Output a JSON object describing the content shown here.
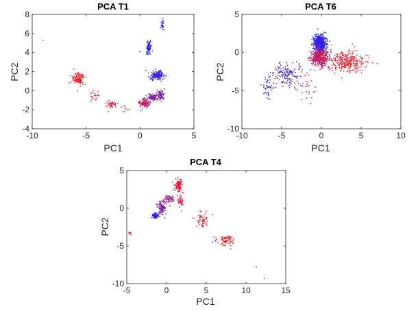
{
  "chart_data": [
    {
      "type": "scatter",
      "title": "PCA T1",
      "xlabel": "PC1",
      "ylabel": "PC2",
      "xlim": [
        -10,
        5
      ],
      "ylim": [
        -4,
        8
      ],
      "xticks": [
        -10,
        -5,
        0,
        5
      ],
      "yticks": [
        -4,
        -2,
        0,
        2,
        4,
        6,
        8
      ],
      "color_gradient": [
        "#ff2020",
        "#2020ff"
      ],
      "clusters": [
        {
          "x": -9.0,
          "y": 5.3,
          "count": 1,
          "t": 0.0
        },
        {
          "x": -5.7,
          "y": 1.3,
          "x2": -5.7,
          "y2": 1.3,
          "spread": [
            0.5,
            0.6
          ],
          "count": 120,
          "t": 0.0
        },
        {
          "x": -4.3,
          "y": -0.5,
          "spread": [
            0.6,
            0.5
          ],
          "count": 20,
          "t": 0.05
        },
        {
          "x": -2.6,
          "y": -1.5,
          "spread": [
            0.4,
            0.3
          ],
          "count": 45,
          "t": 0.1
        },
        {
          "x": -1.4,
          "y": -2.0,
          "spread": [
            0.3,
            0.3
          ],
          "count": 8,
          "t": 0.1
        },
        {
          "x": 0.4,
          "y": -1.3,
          "spread": [
            0.4,
            0.4
          ],
          "count": 120,
          "t": 0.35
        },
        {
          "x": 1.2,
          "y": -0.7,
          "spread": [
            0.4,
            0.3
          ],
          "count": 90,
          "t": 0.55
        },
        {
          "x": 1.9,
          "y": -0.5,
          "spread": [
            0.3,
            0.6
          ],
          "count": 70,
          "t": 0.6
        },
        {
          "x": 1.6,
          "y": 1.6,
          "spread": [
            0.5,
            0.4
          ],
          "count": 160,
          "t": 0.9
        },
        {
          "x": 0.8,
          "y": 4.5,
          "spread": [
            0.2,
            0.6
          ],
          "count": 70,
          "t": 1.0
        },
        {
          "x": 2.1,
          "y": 6.9,
          "spread": [
            0.15,
            0.5
          ],
          "count": 25,
          "t": 1.0
        },
        {
          "x": 0.0,
          "y": 4.1,
          "count": 1,
          "t": 1.0
        }
      ]
    },
    {
      "type": "scatter",
      "title": "PCA T6",
      "xlabel": "PC1",
      "ylabel": "PC2",
      "xlim": [
        -10,
        10
      ],
      "ylim": [
        -10,
        5
      ],
      "xticks": [
        -10,
        -5,
        0,
        5,
        10
      ],
      "yticks": [
        -10,
        -5,
        0,
        5
      ],
      "color_gradient": [
        "#ff2020",
        "#2020ff"
      ],
      "clusters": [
        {
          "x": -0.2,
          "y": 1.2,
          "spread": [
            0.7,
            1.1
          ],
          "count": 520,
          "t": 0.95
        },
        {
          "x": -0.2,
          "y": -0.6,
          "spread": [
            0.9,
            1.0
          ],
          "count": 420,
          "t": 0.3
        },
        {
          "x": 3.2,
          "y": -1.2,
          "spread": [
            2.2,
            1.3
          ],
          "count": 300,
          "t": 0.05
        },
        {
          "x": -4.5,
          "y": -2.8,
          "spread": [
            1.6,
            1.3
          ],
          "count": 130,
          "t": 0.8
        },
        {
          "x": -6.8,
          "y": -4.5,
          "spread": [
            0.9,
            1.6
          ],
          "count": 40,
          "t": 0.9
        },
        {
          "x": -2.0,
          "y": -4.5,
          "spread": [
            1.5,
            2.0
          ],
          "count": 30,
          "t": 0.5
        }
      ]
    },
    {
      "type": "scatter",
      "title": "PCA T4",
      "xlabel": "PC1",
      "ylabel": "PC2",
      "xlim": [
        -5,
        15
      ],
      "ylim": [
        -10,
        5
      ],
      "xticks": [
        -5,
        0,
        5,
        10,
        15
      ],
      "yticks": [
        -10,
        -5,
        0,
        5
      ],
      "color_gradient": [
        "#ff2020",
        "#2020ff"
      ],
      "clusters": [
        {
          "x": -4.6,
          "y": -3.3,
          "spread": [
            0.15,
            0.2
          ],
          "count": 8,
          "t": 0.0
        },
        {
          "x": -1.4,
          "y": -1.0,
          "spread": [
            0.3,
            0.3
          ],
          "count": 90,
          "t": 0.9
        },
        {
          "x": -0.6,
          "y": 0.2,
          "spread": [
            0.4,
            0.8
          ],
          "count": 100,
          "t": 0.6
        },
        {
          "x": 0.3,
          "y": 1.2,
          "spread": [
            0.5,
            0.5
          ],
          "count": 60,
          "t": 0.4
        },
        {
          "x": 1.5,
          "y": 3.0,
          "spread": [
            0.4,
            0.8
          ],
          "count": 110,
          "t": 0.15
        },
        {
          "x": 1.8,
          "y": 1.0,
          "spread": [
            0.3,
            0.8
          ],
          "count": 40,
          "t": 0.2
        },
        {
          "x": 4.5,
          "y": -1.5,
          "spread": [
            0.8,
            1.0
          ],
          "count": 50,
          "t": 0.05
        },
        {
          "x": 7.5,
          "y": -4.2,
          "spread": [
            1.0,
            0.6
          ],
          "count": 70,
          "t": 0.0
        },
        {
          "x": 11.3,
          "y": -7.8,
          "count": 1,
          "t": 0.0
        },
        {
          "x": 12.3,
          "y": -9.3,
          "count": 1,
          "t": 0.0
        }
      ]
    }
  ]
}
